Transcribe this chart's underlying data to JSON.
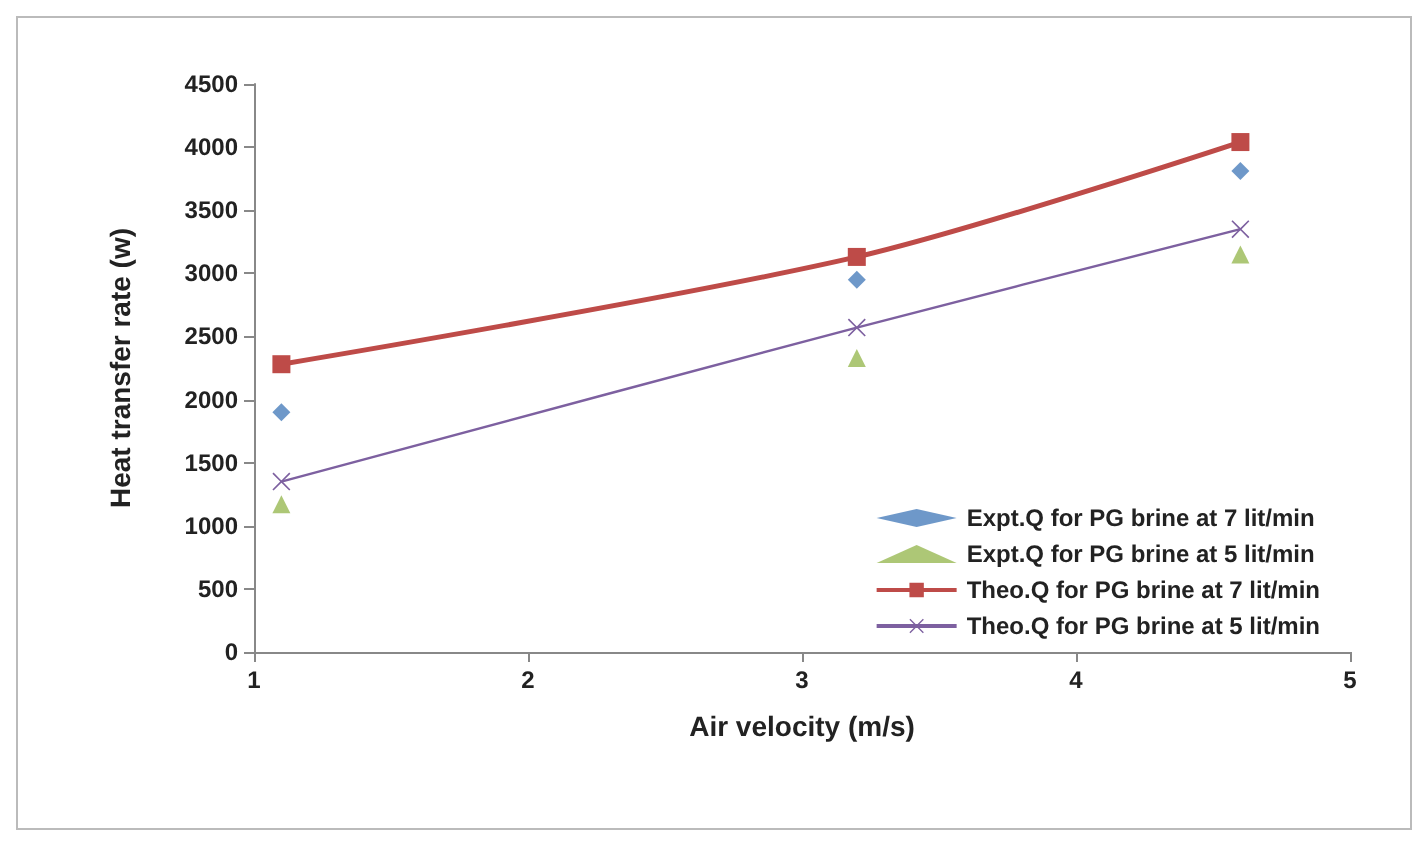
{
  "chart_data": {
    "type": "line",
    "xlabel": "Air velocity (m/s)",
    "ylabel": "Heat transfer rate (w)",
    "x": [
      1.1,
      3.2,
      4.6
    ],
    "series": [
      {
        "name": "Expt.Q for PG brine at 7 lit/min",
        "type": "scatter",
        "marker": "diamond",
        "color": "#4a7ebb",
        "values": [
          1900,
          2950,
          3810
        ]
      },
      {
        "name": "Expt.Q for PG brine at 5 lit/min",
        "type": "scatter",
        "marker": "triangle",
        "color": "#98b954",
        "values": [
          1170,
          2330,
          3150
        ]
      },
      {
        "name": "Theo.Q for PG brine at 7 lit/min",
        "marker": "square",
        "color": "#be4b48",
        "values": [
          2280,
          3130,
          4040
        ]
      },
      {
        "name": "Theo.Q for PG brine at 5 lit/min",
        "marker": "cross",
        "color": "#7d60a0",
        "values": [
          1350,
          2570,
          3350
        ]
      }
    ],
    "xlim": [
      1,
      5
    ],
    "xticks": [
      1,
      2,
      3,
      4,
      5
    ],
    "ylim": [
      0,
      4500
    ],
    "yticks": [
      0,
      500,
      1000,
      1500,
      2000,
      2500,
      3000,
      3500,
      4000,
      4500
    ],
    "grid": false,
    "legend": "bottom right"
  }
}
